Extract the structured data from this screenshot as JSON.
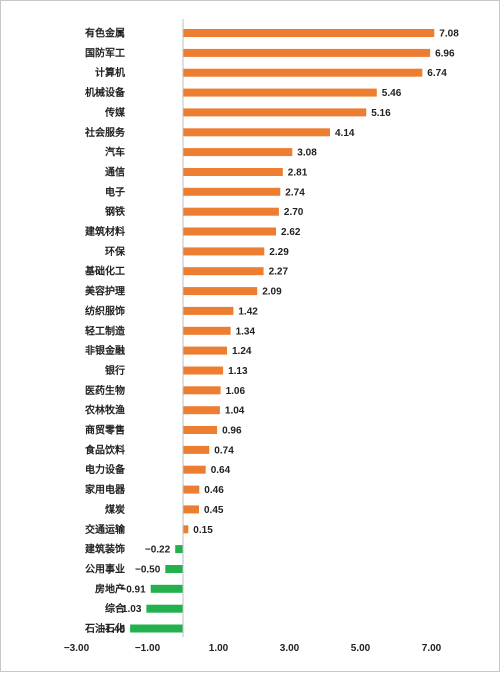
{
  "chart_data": {
    "type": "bar",
    "orientation": "horizontal",
    "categories": [
      "有色金属",
      "国防军工",
      "计算机",
      "机械设备",
      "传媒",
      "社会服务",
      "汽车",
      "通信",
      "电子",
      "钢铁",
      "建筑材料",
      "环保",
      "基础化工",
      "美容护理",
      "纺织服饰",
      "轻工制造",
      "非银金融",
      "银行",
      "医药生物",
      "农林牧渔",
      "商贸零售",
      "食品饮料",
      "电力设备",
      "家用电器",
      "煤炭",
      "交通运输",
      "建筑装饰",
      "公用事业",
      "房地产",
      "综合",
      "石油石化"
    ],
    "values": [
      7.08,
      6.96,
      6.74,
      5.46,
      5.16,
      4.14,
      3.08,
      2.81,
      2.74,
      2.7,
      2.62,
      2.29,
      2.27,
      2.09,
      1.42,
      1.34,
      1.24,
      1.13,
      1.06,
      1.04,
      0.96,
      0.74,
      0.64,
      0.46,
      0.45,
      0.15,
      -0.22,
      -0.5,
      -0.91,
      -1.03,
      -1.49
    ],
    "value_labels": [
      "7.08",
      "6.96",
      "6.74",
      "5.46",
      "5.16",
      "4.14",
      "3.08",
      "2.81",
      "2.74",
      "2.70",
      "2.62",
      "2.29",
      "2.27",
      "2.09",
      "1.42",
      "1.34",
      "1.24",
      "1.13",
      "1.06",
      "1.04",
      "0.96",
      "0.74",
      "0.64",
      "0.46",
      "0.45",
      "0.15",
      "−0.22",
      "−0.50",
      "−0.91",
      "−1.03",
      "−1.49"
    ],
    "xticks": [
      -3,
      -1,
      1,
      3,
      5,
      7
    ],
    "xtick_labels": [
      "−3.00",
      "−1.00",
      "1.00",
      "3.00",
      "5.00",
      "7.00"
    ],
    "xlim": [
      -3,
      7
    ],
    "colors": {
      "positive": "#ED7D31",
      "negative": "#22B14C",
      "axis": "#bfbfbf"
    },
    "title": "",
    "xlabel": "",
    "ylabel": "",
    "grid": false,
    "legend": "none"
  }
}
